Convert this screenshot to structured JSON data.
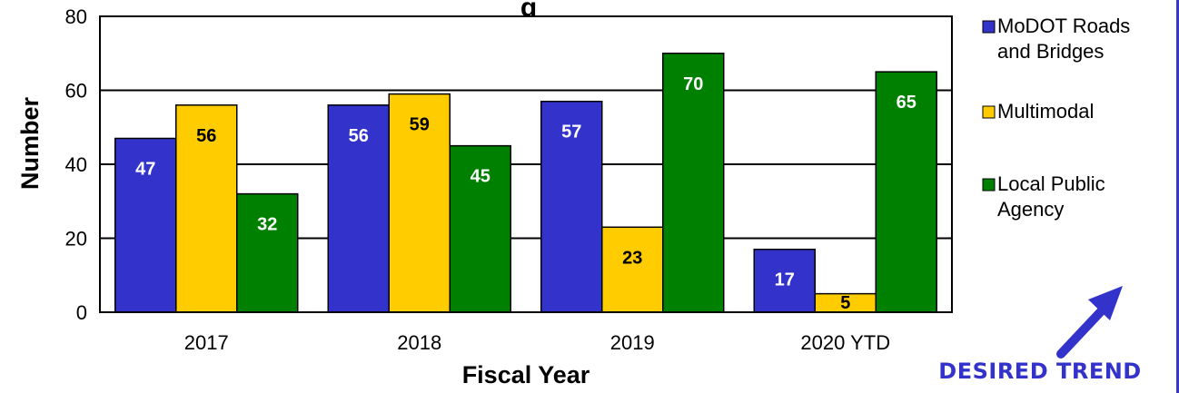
{
  "chart_data": {
    "type": "bar",
    "title": "g",
    "xlabel": "Fiscal Year",
    "ylabel": "Number",
    "categories": [
      "2017",
      "2018",
      "2019",
      "2020 YTD"
    ],
    "ylim": [
      0,
      80
    ],
    "yticks": [
      0,
      20,
      40,
      60,
      80
    ],
    "grid": true,
    "legend_position": "right",
    "series": [
      {
        "name": "MoDOT Roads and Bridges",
        "legend_lines": [
          "MoDOT Roads",
          "and Bridges"
        ],
        "color": "#3333cc",
        "label_color": "#ffffff",
        "values": [
          47,
          56,
          57,
          17
        ]
      },
      {
        "name": "Multimodal",
        "legend_lines": [
          "Multimodal"
        ],
        "color": "#ffcc00",
        "label_color": "#000000",
        "values": [
          56,
          59,
          23,
          5
        ]
      },
      {
        "name": "Local Public Agency",
        "legend_lines": [
          "Local Public",
          "Agency"
        ],
        "color": "#008000",
        "label_color": "#ffffff",
        "values": [
          32,
          45,
          70,
          65
        ]
      }
    ]
  },
  "trend": {
    "label": "DESIRED TREND",
    "direction": "up",
    "color": "#3333cc",
    "icon": "up-right-arrow-icon"
  }
}
